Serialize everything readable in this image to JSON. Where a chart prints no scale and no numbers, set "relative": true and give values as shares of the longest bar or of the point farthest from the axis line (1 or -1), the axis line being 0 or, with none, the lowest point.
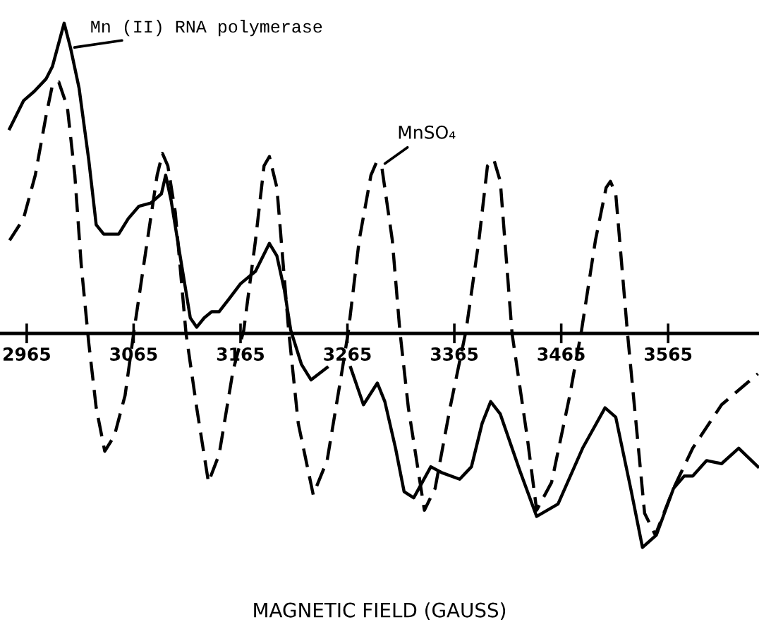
{
  "chart_data": {
    "type": "line",
    "relative": true,
    "xlabel": "MAGNETIC FIELD (GAUSS)",
    "xlim": [
      2940,
      3650
    ],
    "xticks": [
      2965,
      3065,
      3165,
      3265,
      3365,
      3465,
      3565
    ],
    "grid": false,
    "legend": false,
    "marker": "none",
    "series": [
      {
        "name": "Mn (II) RNA polymerase",
        "color": "#000000",
        "line_style": "solid",
        "x": [
          2949,
          2962,
          2972,
          2983,
          2989,
          3000,
          3006,
          3014,
          3023,
          3030,
          3037,
          3043,
          3051,
          3060,
          3070,
          3081,
          3091,
          3095,
          3100,
          3108,
          3118,
          3124,
          3131,
          3138,
          3145,
          3154,
          3165,
          3179,
          3192,
          3199,
          3206,
          3212,
          3222,
          3231,
          3246,
          3257,
          3268,
          3273,
          3280,
          3293,
          3300,
          3310,
          3318,
          3327,
          3343,
          3354,
          3370,
          3381,
          3391,
          3399,
          3408,
          3426,
          3442,
          3462,
          3485,
          3506,
          3516,
          3530,
          3541,
          3554,
          3570,
          3580,
          3588,
          3601,
          3615,
          3631,
          3649
        ],
        "values": [
          0.66,
          0.75,
          0.78,
          0.82,
          0.86,
          1.0,
          0.92,
          0.79,
          0.56,
          0.35,
          0.32,
          0.32,
          0.32,
          0.37,
          0.41,
          0.42,
          0.45,
          0.51,
          0.43,
          0.26,
          0.05,
          0.02,
          0.05,
          0.07,
          0.07,
          0.11,
          0.16,
          0.2,
          0.29,
          0.25,
          0.14,
          0.01,
          -0.1,
          -0.15,
          -0.11,
          null,
          -0.11,
          -0.16,
          -0.23,
          -0.16,
          -0.22,
          -0.37,
          -0.51,
          -0.53,
          -0.43,
          -0.45,
          -0.47,
          -0.43,
          -0.29,
          -0.22,
          -0.26,
          -0.44,
          -0.59,
          -0.55,
          -0.37,
          -0.24,
          -0.27,
          -0.5,
          -0.69,
          -0.65,
          -0.5,
          -0.46,
          -0.46,
          -0.41,
          -0.42,
          -0.37,
          -0.43
        ]
      },
      {
        "name": "MnSO₄",
        "color": "#000000",
        "line_style": "dashed",
        "x": [
          2949,
          2962,
          2973,
          2983,
          2989,
          2995,
          3003,
          3010,
          3016,
          3023,
          3030,
          3038,
          3047,
          3057,
          3065,
          3077,
          3087,
          3092,
          3097,
          3104,
          3114,
          3124,
          3135,
          3145,
          3158,
          3168,
          3179,
          3187,
          3192,
          3199,
          3210,
          3219,
          3233,
          3246,
          3260,
          3266,
          3276,
          3287,
          3292,
          3297,
          3307,
          3314,
          3322,
          3337,
          3347,
          3361,
          3376,
          3388,
          3396,
          3402,
          3408,
          3419,
          3433,
          3442,
          3456,
          3473,
          3484,
          3497,
          3507,
          3511,
          3516,
          3527,
          3543,
          3553,
          3570,
          3588,
          3615,
          3649
        ],
        "values": [
          0.3,
          0.37,
          0.51,
          0.7,
          0.8,
          0.81,
          0.73,
          0.51,
          0.22,
          -0.03,
          -0.24,
          -0.38,
          -0.33,
          -0.2,
          0.0,
          0.28,
          0.51,
          0.58,
          0.54,
          0.39,
          0.0,
          -0.24,
          -0.48,
          -0.39,
          -0.12,
          0.01,
          0.3,
          0.54,
          0.57,
          0.47,
          0.01,
          -0.29,
          -0.52,
          -0.41,
          -0.12,
          0.01,
          0.3,
          0.51,
          0.55,
          0.54,
          0.3,
          0.01,
          -0.24,
          -0.57,
          -0.5,
          -0.24,
          0.01,
          0.3,
          0.54,
          0.56,
          0.49,
          0.0,
          -0.33,
          -0.57,
          -0.48,
          -0.2,
          0.01,
          0.3,
          0.47,
          0.49,
          0.45,
          0.0,
          -0.58,
          -0.65,
          -0.5,
          -0.37,
          -0.23,
          -0.13
        ]
      }
    ]
  }
}
